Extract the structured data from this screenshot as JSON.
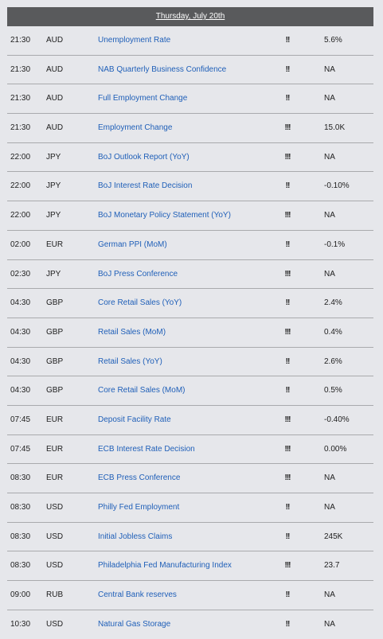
{
  "header": {
    "date": "Thursday, July 20th"
  },
  "events": [
    {
      "time": "21:30",
      "currency": "AUD",
      "event": "Unemployment Rate",
      "importance": "!!",
      "value": "5.6%"
    },
    {
      "time": "21:30",
      "currency": "AUD",
      "event": "NAB Quarterly Business Confidence",
      "importance": "!!",
      "value": "NA"
    },
    {
      "time": "21:30",
      "currency": "AUD",
      "event": "Full Employment Change",
      "importance": "!!",
      "value": "NA"
    },
    {
      "time": "21:30",
      "currency": "AUD",
      "event": "Employment Change",
      "importance": "!!!",
      "value": "15.0K"
    },
    {
      "time": "22:00",
      "currency": "JPY",
      "event": "BoJ Outlook Report (YoY)",
      "importance": "!!!",
      "value": "NA"
    },
    {
      "time": "22:00",
      "currency": "JPY",
      "event": "BoJ Interest Rate Decision",
      "importance": "!!",
      "value": "-0.10%"
    },
    {
      "time": "22:00",
      "currency": "JPY",
      "event": "BoJ Monetary Policy Statement (YoY)",
      "importance": "!!!",
      "value": "NA"
    },
    {
      "time": "02:00",
      "currency": "EUR",
      "event": "German PPI (MoM)",
      "importance": "!!",
      "value": "-0.1%"
    },
    {
      "time": "02:30",
      "currency": "JPY",
      "event": "BoJ Press Conference",
      "importance": "!!!",
      "value": "NA"
    },
    {
      "time": "04:30",
      "currency": "GBP",
      "event": "Core Retail Sales (YoY)",
      "importance": "!!",
      "value": "2.4%"
    },
    {
      "time": "04:30",
      "currency": "GBP",
      "event": "Retail Sales (MoM)",
      "importance": "!!!",
      "value": "0.4%"
    },
    {
      "time": "04:30",
      "currency": "GBP",
      "event": "Retail Sales (YoY)",
      "importance": "!!",
      "value": "2.6%"
    },
    {
      "time": "04:30",
      "currency": "GBP",
      "event": "Core Retail Sales (MoM)",
      "importance": "!!",
      "value": "0.5%"
    },
    {
      "time": "07:45",
      "currency": "EUR",
      "event": "Deposit Facility Rate",
      "importance": "!!!",
      "value": "-0.40%"
    },
    {
      "time": "07:45",
      "currency": "EUR",
      "event": "ECB Interest Rate Decision",
      "importance": "!!!",
      "value": "0.00%"
    },
    {
      "time": "08:30",
      "currency": "EUR",
      "event": "ECB Press Conference",
      "importance": "!!!",
      "value": "NA"
    },
    {
      "time": "08:30",
      "currency": "USD",
      "event": "Philly Fed Employment",
      "importance": "!!",
      "value": "NA"
    },
    {
      "time": "08:30",
      "currency": "USD",
      "event": "Initial Jobless Claims",
      "importance": "!!",
      "value": "245K"
    },
    {
      "time": "08:30",
      "currency": "USD",
      "event": "Philadelphia Fed Manufacturing Index",
      "importance": "!!!",
      "value": "23.7"
    },
    {
      "time": "09:00",
      "currency": "RUB",
      "event": "Central Bank reserves",
      "importance": "!!",
      "value": "NA"
    },
    {
      "time": "10:30",
      "currency": "USD",
      "event": "Natural Gas Storage",
      "importance": "!!",
      "value": "NA"
    }
  ]
}
